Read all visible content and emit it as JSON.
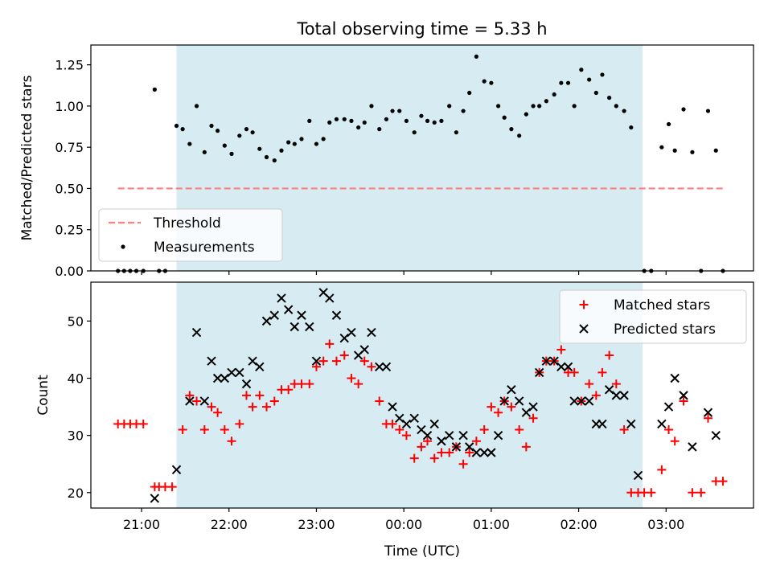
{
  "figure": {
    "title": "Total observing time = 5.33 h",
    "xlabel": "Time (UTC)",
    "x_ticks": [
      "21:00",
      "22:00",
      "23:00",
      "00:00",
      "01:00",
      "02:00",
      "03:00"
    ]
  },
  "colors": {
    "shade": "#add8e6",
    "threshold": "#ff7f7f",
    "measurements": "#000000",
    "matched": "#ff0000",
    "predicted": "#000000"
  },
  "chart_data": [
    {
      "type": "scatter",
      "title": "Total observing time = 5.33 h",
      "xlabel": "",
      "ylabel": "Matched/Predicted stars",
      "x_unit": "hours since 21:00 UTC",
      "xlim": [
        -0.58,
        7.0
      ],
      "ylim": [
        0.0,
        1.37
      ],
      "yticks": [
        0.0,
        0.25,
        0.5,
        0.75,
        1.0,
        1.25
      ],
      "yticks_labels": [
        "0.00",
        "0.25",
        "0.50",
        "0.75",
        "1.00",
        "1.25"
      ],
      "shaded_interval": [
        0.4,
        5.73
      ],
      "threshold": {
        "name": "Threshold",
        "y": 0.5,
        "x_range": [
          -0.27,
          6.65
        ]
      },
      "legend": {
        "placement": "lower-left",
        "entries": [
          "Threshold",
          "Measurements"
        ]
      },
      "series": [
        {
          "name": "Measurements",
          "points": [
            [
              -0.27,
              0
            ],
            [
              -0.2,
              0
            ],
            [
              -0.13,
              0
            ],
            [
              -0.06,
              0
            ],
            [
              0.02,
              0
            ],
            [
              0.15,
              1.1
            ],
            [
              0.2,
              0
            ],
            [
              0.27,
              0
            ],
            [
              0.4,
              0.88
            ],
            [
              0.47,
              0.86
            ],
            [
              0.55,
              0.77
            ],
            [
              0.63,
              1.0
            ],
            [
              0.72,
              0.72
            ],
            [
              0.8,
              0.88
            ],
            [
              0.87,
              0.85
            ],
            [
              0.95,
              0.76
            ],
            [
              1.03,
              0.71
            ],
            [
              1.12,
              0.82
            ],
            [
              1.2,
              0.86
            ],
            [
              1.27,
              0.84
            ],
            [
              1.35,
              0.74
            ],
            [
              1.43,
              0.69
            ],
            [
              1.52,
              0.67
            ],
            [
              1.6,
              0.73
            ],
            [
              1.68,
              0.78
            ],
            [
              1.75,
              0.77
            ],
            [
              1.83,
              0.8
            ],
            [
              1.92,
              0.91
            ],
            [
              2.0,
              0.77
            ],
            [
              2.08,
              0.8
            ],
            [
              2.15,
              0.9
            ],
            [
              2.23,
              0.92
            ],
            [
              2.32,
              0.92
            ],
            [
              2.4,
              0.91
            ],
            [
              2.48,
              0.87
            ],
            [
              2.55,
              0.9
            ],
            [
              2.63,
              1.0
            ],
            [
              2.72,
              0.86
            ],
            [
              2.8,
              0.92
            ],
            [
              2.87,
              0.97
            ],
            [
              2.95,
              0.97
            ],
            [
              3.03,
              0.91
            ],
            [
              3.12,
              0.84
            ],
            [
              3.2,
              0.94
            ],
            [
              3.27,
              0.91
            ],
            [
              3.35,
              0.9
            ],
            [
              3.43,
              0.91
            ],
            [
              3.52,
              1.0
            ],
            [
              3.6,
              0.84
            ],
            [
              3.68,
              0.97
            ],
            [
              3.75,
              1.08
            ],
            [
              3.83,
              1.3
            ],
            [
              3.92,
              1.15
            ],
            [
              4.0,
              1.14
            ],
            [
              4.08,
              1.0
            ],
            [
              4.15,
              0.93
            ],
            [
              4.23,
              0.86
            ],
            [
              4.32,
              0.82
            ],
            [
              4.4,
              0.95
            ],
            [
              4.48,
              1.0
            ],
            [
              4.55,
              1.0
            ],
            [
              4.63,
              1.03
            ],
            [
              4.72,
              1.07
            ],
            [
              4.8,
              1.14
            ],
            [
              4.88,
              1.14
            ],
            [
              4.95,
              1.0
            ],
            [
              5.03,
              1.22
            ],
            [
              5.12,
              1.16
            ],
            [
              5.2,
              1.08
            ],
            [
              5.27,
              1.19
            ],
            [
              5.35,
              1.05
            ],
            [
              5.43,
              1.0
            ],
            [
              5.52,
              0.97
            ],
            [
              5.6,
              0.87
            ],
            [
              5.75,
              0
            ],
            [
              5.83,
              0
            ],
            [
              5.95,
              0.75
            ],
            [
              6.03,
              0.89
            ],
            [
              6.1,
              0.73
            ],
            [
              6.2,
              0.98
            ],
            [
              6.3,
              0.72
            ],
            [
              6.4,
              0
            ],
            [
              6.48,
              0.97
            ],
            [
              6.57,
              0.73
            ],
            [
              6.65,
              0
            ]
          ]
        }
      ]
    },
    {
      "type": "scatter",
      "title": "",
      "xlabel": "Time (UTC)",
      "ylabel": "Count",
      "x_unit": "hours since 21:00 UTC",
      "xlim": [
        -0.58,
        7.0
      ],
      "ylim": [
        17.3,
        56.8
      ],
      "yticks": [
        20,
        30,
        40,
        50
      ],
      "yticks_labels": [
        "20",
        "30",
        "40",
        "50"
      ],
      "shaded_interval": [
        0.4,
        5.73
      ],
      "legend": {
        "placement": "top-right",
        "entries": [
          "Matched stars",
          "Predicted stars"
        ]
      },
      "series": [
        {
          "name": "Matched stars",
          "marker": "+",
          "points": [
            [
              -0.27,
              32
            ],
            [
              -0.2,
              32
            ],
            [
              -0.13,
              32
            ],
            [
              -0.06,
              32
            ],
            [
              0.02,
              32
            ],
            [
              0.15,
              21
            ],
            [
              0.2,
              21
            ],
            [
              0.27,
              21
            ],
            [
              0.35,
              21
            ],
            [
              0.47,
              31
            ],
            [
              0.55,
              37
            ],
            [
              0.63,
              36
            ],
            [
              0.72,
              31
            ],
            [
              0.8,
              35
            ],
            [
              0.87,
              34
            ],
            [
              0.95,
              31
            ],
            [
              1.03,
              29
            ],
            [
              1.12,
              32
            ],
            [
              1.2,
              37
            ],
            [
              1.27,
              35
            ],
            [
              1.35,
              37
            ],
            [
              1.43,
              35
            ],
            [
              1.52,
              36
            ],
            [
              1.6,
              38
            ],
            [
              1.68,
              38
            ],
            [
              1.75,
              39
            ],
            [
              1.83,
              39
            ],
            [
              1.92,
              39
            ],
            [
              2.0,
              42
            ],
            [
              2.08,
              43
            ],
            [
              2.15,
              46
            ],
            [
              2.23,
              43
            ],
            [
              2.32,
              44
            ],
            [
              2.4,
              40
            ],
            [
              2.48,
              39
            ],
            [
              2.55,
              43
            ],
            [
              2.63,
              42
            ],
            [
              2.72,
              36
            ],
            [
              2.8,
              32
            ],
            [
              2.87,
              32
            ],
            [
              2.95,
              31
            ],
            [
              3.03,
              30
            ],
            [
              3.12,
              26
            ],
            [
              3.2,
              28
            ],
            [
              3.27,
              29
            ],
            [
              3.35,
              26
            ],
            [
              3.43,
              27
            ],
            [
              3.52,
              27
            ],
            [
              3.6,
              28
            ],
            [
              3.68,
              25
            ],
            [
              3.75,
              27
            ],
            [
              3.83,
              29
            ],
            [
              3.92,
              31
            ],
            [
              4.0,
              35
            ],
            [
              4.08,
              34
            ],
            [
              4.15,
              36
            ],
            [
              4.23,
              35
            ],
            [
              4.32,
              31
            ],
            [
              4.4,
              28
            ],
            [
              4.48,
              33
            ],
            [
              4.55,
              41
            ],
            [
              4.63,
              43
            ],
            [
              4.72,
              43
            ],
            [
              4.8,
              45
            ],
            [
              4.88,
              41
            ],
            [
              4.95,
              41
            ],
            [
              5.03,
              36
            ],
            [
              5.12,
              39
            ],
            [
              5.2,
              37
            ],
            [
              5.27,
              41
            ],
            [
              5.35,
              44
            ],
            [
              5.43,
              39
            ],
            [
              5.52,
              31
            ],
            [
              5.6,
              20
            ],
            [
              5.68,
              20
            ],
            [
              5.75,
              20
            ],
            [
              5.83,
              20
            ],
            [
              5.95,
              24
            ],
            [
              6.03,
              31
            ],
            [
              6.1,
              29
            ],
            [
              6.2,
              36
            ],
            [
              6.3,
              20
            ],
            [
              6.4,
              20
            ],
            [
              6.48,
              33
            ],
            [
              6.57,
              22
            ],
            [
              6.65,
              22
            ]
          ]
        },
        {
          "name": "Predicted stars",
          "marker": "x",
          "points": [
            [
              0.15,
              19
            ],
            [
              0.4,
              24
            ],
            [
              0.55,
              36
            ],
            [
              0.63,
              48
            ],
            [
              0.72,
              36
            ],
            [
              0.8,
              43
            ],
            [
              0.87,
              40
            ],
            [
              0.95,
              40
            ],
            [
              1.03,
              41
            ],
            [
              1.12,
              41
            ],
            [
              1.2,
              39
            ],
            [
              1.27,
              43
            ],
            [
              1.35,
              42
            ],
            [
              1.43,
              50
            ],
            [
              1.52,
              51
            ],
            [
              1.6,
              54
            ],
            [
              1.68,
              52
            ],
            [
              1.75,
              49
            ],
            [
              1.83,
              51
            ],
            [
              1.92,
              49
            ],
            [
              2.0,
              43
            ],
            [
              2.08,
              55
            ],
            [
              2.15,
              54
            ],
            [
              2.23,
              51
            ],
            [
              2.32,
              47
            ],
            [
              2.4,
              48
            ],
            [
              2.48,
              44
            ],
            [
              2.55,
              45
            ],
            [
              2.63,
              48
            ],
            [
              2.72,
              42
            ],
            [
              2.8,
              42
            ],
            [
              2.87,
              35
            ],
            [
              2.95,
              33
            ],
            [
              3.03,
              32
            ],
            [
              3.12,
              33
            ],
            [
              3.2,
              31
            ],
            [
              3.27,
              30
            ],
            [
              3.35,
              32
            ],
            [
              3.43,
              29
            ],
            [
              3.52,
              30
            ],
            [
              3.6,
              28
            ],
            [
              3.68,
              30
            ],
            [
              3.75,
              28
            ],
            [
              3.83,
              27
            ],
            [
              3.92,
              27
            ],
            [
              4.0,
              27
            ],
            [
              4.08,
              30
            ],
            [
              4.15,
              36
            ],
            [
              4.23,
              38
            ],
            [
              4.32,
              36
            ],
            [
              4.4,
              34
            ],
            [
              4.48,
              35
            ],
            [
              4.55,
              41
            ],
            [
              4.63,
              43
            ],
            [
              4.72,
              43
            ],
            [
              4.8,
              42
            ],
            [
              4.88,
              42
            ],
            [
              4.95,
              36
            ],
            [
              5.03,
              36
            ],
            [
              5.12,
              36
            ],
            [
              5.2,
              32
            ],
            [
              5.27,
              32
            ],
            [
              5.35,
              38
            ],
            [
              5.43,
              37
            ],
            [
              5.52,
              37
            ],
            [
              5.6,
              32
            ],
            [
              5.68,
              23
            ],
            [
              5.95,
              32
            ],
            [
              6.03,
              35
            ],
            [
              6.1,
              40
            ],
            [
              6.2,
              37
            ],
            [
              6.3,
              28
            ],
            [
              6.48,
              34
            ],
            [
              6.57,
              30
            ]
          ]
        }
      ]
    }
  ]
}
